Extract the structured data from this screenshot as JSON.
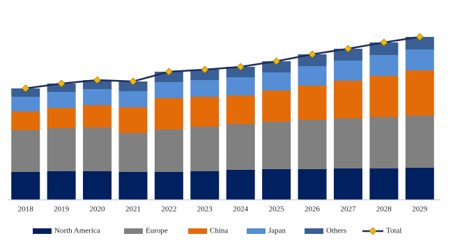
{
  "chart_data": {
    "type": "stacked_bar",
    "categories": [
      "2018",
      "2019",
      "2020",
      "2021",
      "2022",
      "2023",
      "2024",
      "2025",
      "2026",
      "2027",
      "2028",
      "2029"
    ],
    "series": [
      {
        "name": "North America",
        "color": "#002060",
        "values": [
          40,
          41,
          41,
          40,
          40,
          41,
          43,
          44,
          44,
          45,
          45,
          46
        ]
      },
      {
        "name": "Europe",
        "color": "#808080",
        "values": [
          60,
          62,
          63,
          56,
          61,
          64,
          66,
          68,
          71,
          72,
          74,
          75
        ]
      },
      {
        "name": "China",
        "color": "#e36c09",
        "values": [
          27,
          29,
          32,
          37,
          45,
          43,
          41,
          45,
          49,
          54,
          59,
          65
        ]
      },
      {
        "name": "Japan",
        "color": "#558ed5",
        "values": [
          21,
          23,
          23,
          23,
          23,
          24,
          26,
          26,
          28,
          29,
          30,
          30
        ]
      },
      {
        "name": "Others",
        "color": "#3a5f94",
        "values": [
          12,
          12,
          13,
          14,
          15,
          15,
          15,
          16,
          17,
          17,
          18,
          18
        ]
      }
    ],
    "line": {
      "name": "Total",
      "color": "#1f2d5c",
      "marker_color": "#f5b800",
      "values": [
        160,
        167,
        172,
        170,
        184,
        187,
        191,
        199,
        209,
        217,
        226,
        234
      ]
    },
    "ylim": [
      0,
      250
    ]
  }
}
